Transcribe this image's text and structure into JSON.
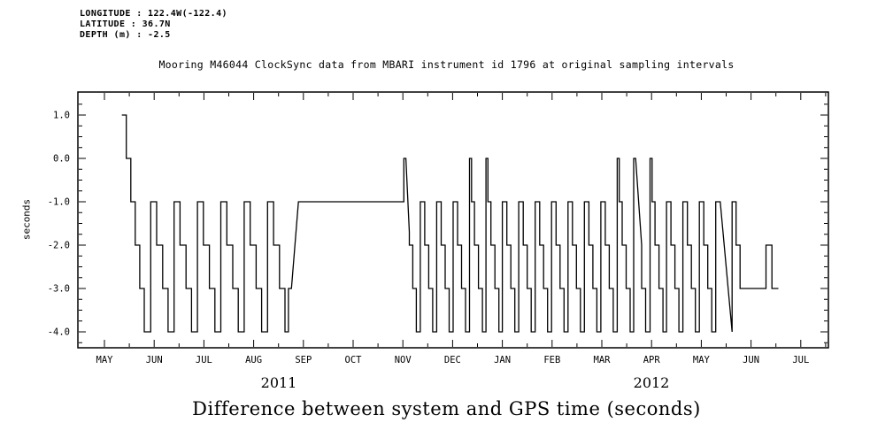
{
  "header": {
    "longitude": "LONGITUDE : 122.4W(-122.4)",
    "latitude": "LATITUDE : 36.7N",
    "depth": "DEPTH (m) : -2.5"
  },
  "title": "Mooring M46044 ClockSync data from MBARI instrument id 1796 at original sampling intervals",
  "caption": "Difference between system and GPS time (seconds)",
  "chart_data": {
    "type": "line",
    "title": "Mooring M46044 ClockSync data from MBARI instrument id 1796 at original sampling intervals",
    "xlabel": "",
    "ylabel": "seconds",
    "month_labels": [
      "MAY",
      "JUN",
      "JUL",
      "AUG",
      "SEP",
      "OCT",
      "NOV",
      "DEC",
      "JAN",
      "FEB",
      "MAR",
      "APR",
      "MAY",
      "JUN",
      "JUL"
    ],
    "year_labels": [
      "2011",
      "2012"
    ],
    "yticks": [
      1.0,
      0.0,
      -1.0,
      -2.0,
      -3.0,
      -4.0
    ],
    "ytick_labels": [
      "1.0",
      "0.0",
      "-1.0",
      "-2.0",
      "-3.0",
      "-4.0"
    ],
    "ylim": [
      -4.4,
      1.55
    ],
    "xlim_months": [
      -0.53,
      14.55
    ],
    "grid": false,
    "legend": "none",
    "description": "Step plot of system-minus-GPS clock offset in seconds. Sawtooth drift between -1 and -4 s from mid-May to late Aug 2011, flat at -1 s from Sep to early Nov 2011, dense sawtooth between 0 and -4 s (with resets to 0 near Dec, Jan, Mar, Apr) from Nov 2011 to Jun 2012, ending near -3 s before Jul 2012.",
    "points": [
      [
        0.35,
        1
      ],
      [
        0.44,
        1
      ],
      [
        0.44,
        0
      ],
      [
        0.53,
        0
      ],
      [
        0.53,
        -1
      ],
      [
        0.62,
        -1
      ],
      [
        0.62,
        -2
      ],
      [
        0.71,
        -2
      ],
      [
        0.71,
        -3
      ],
      [
        0.8,
        -3
      ],
      [
        0.8,
        -4
      ],
      [
        0.93,
        -4
      ],
      [
        0.93,
        -1
      ],
      [
        1.05,
        -1
      ],
      [
        1.05,
        -2
      ],
      [
        1.17,
        -2
      ],
      [
        1.17,
        -3
      ],
      [
        1.28,
        -3
      ],
      [
        1.28,
        -4
      ],
      [
        1.4,
        -4
      ],
      [
        1.4,
        -1
      ],
      [
        1.52,
        -1
      ],
      [
        1.52,
        -2
      ],
      [
        1.64,
        -2
      ],
      [
        1.64,
        -3
      ],
      [
        1.75,
        -3
      ],
      [
        1.75,
        -4
      ],
      [
        1.87,
        -4
      ],
      [
        1.87,
        -1
      ],
      [
        1.99,
        -1
      ],
      [
        1.99,
        -2
      ],
      [
        2.11,
        -2
      ],
      [
        2.11,
        -3
      ],
      [
        2.22,
        -3
      ],
      [
        2.22,
        -4
      ],
      [
        2.34,
        -4
      ],
      [
        2.34,
        -1
      ],
      [
        2.46,
        -1
      ],
      [
        2.46,
        -2
      ],
      [
        2.58,
        -2
      ],
      [
        2.58,
        -3
      ],
      [
        2.69,
        -3
      ],
      [
        2.69,
        -4
      ],
      [
        2.81,
        -4
      ],
      [
        2.81,
        -1
      ],
      [
        2.93,
        -1
      ],
      [
        2.93,
        -2
      ],
      [
        3.05,
        -2
      ],
      [
        3.05,
        -3
      ],
      [
        3.16,
        -3
      ],
      [
        3.16,
        -4
      ],
      [
        3.28,
        -4
      ],
      [
        3.28,
        -1
      ],
      [
        3.4,
        -1
      ],
      [
        3.4,
        -2
      ],
      [
        3.52,
        -2
      ],
      [
        3.52,
        -3
      ],
      [
        3.63,
        -3
      ],
      [
        3.63,
        -4
      ],
      [
        3.7,
        -4
      ],
      [
        3.7,
        -3
      ],
      [
        3.76,
        -3
      ],
      [
        3.9,
        -1
      ],
      [
        6.02,
        -1
      ],
      [
        6.02,
        0
      ],
      [
        6.06,
        0
      ],
      [
        6.13,
        -1.7
      ],
      [
        6.13,
        -2
      ],
      [
        6.2,
        -2
      ],
      [
        6.2,
        -3
      ],
      [
        6.27,
        -3
      ],
      [
        6.27,
        -4
      ],
      [
        6.35,
        -4
      ],
      [
        6.35,
        -1
      ],
      [
        6.44,
        -1
      ],
      [
        6.44,
        -2
      ],
      [
        6.52,
        -2
      ],
      [
        6.52,
        -3
      ],
      [
        6.6,
        -3
      ],
      [
        6.6,
        -4
      ],
      [
        6.68,
        -4
      ],
      [
        6.68,
        -1
      ],
      [
        6.77,
        -1
      ],
      [
        6.77,
        -2
      ],
      [
        6.85,
        -2
      ],
      [
        6.85,
        -3
      ],
      [
        6.93,
        -3
      ],
      [
        6.93,
        -4
      ],
      [
        7.01,
        -4
      ],
      [
        7.01,
        -1
      ],
      [
        7.1,
        -1
      ],
      [
        7.1,
        -2
      ],
      [
        7.18,
        -2
      ],
      [
        7.18,
        -3
      ],
      [
        7.26,
        -3
      ],
      [
        7.26,
        -4
      ],
      [
        7.34,
        -4
      ],
      [
        7.34,
        0
      ],
      [
        7.38,
        0
      ],
      [
        7.38,
        -1
      ],
      [
        7.44,
        -1
      ],
      [
        7.44,
        -2
      ],
      [
        7.52,
        -2
      ],
      [
        7.52,
        -3
      ],
      [
        7.6,
        -3
      ],
      [
        7.6,
        -4
      ],
      [
        7.67,
        -4
      ],
      [
        7.67,
        0
      ],
      [
        7.71,
        0
      ],
      [
        7.71,
        -1
      ],
      [
        7.77,
        -1
      ],
      [
        7.77,
        -2
      ],
      [
        7.85,
        -2
      ],
      [
        7.85,
        -3
      ],
      [
        7.93,
        -3
      ],
      [
        7.93,
        -4
      ],
      [
        8.0,
        -4
      ],
      [
        8.0,
        -1
      ],
      [
        8.09,
        -1
      ],
      [
        8.09,
        -2
      ],
      [
        8.17,
        -2
      ],
      [
        8.17,
        -3
      ],
      [
        8.25,
        -3
      ],
      [
        8.25,
        -4
      ],
      [
        8.33,
        -4
      ],
      [
        8.33,
        -1
      ],
      [
        8.42,
        -1
      ],
      [
        8.42,
        -2
      ],
      [
        8.5,
        -2
      ],
      [
        8.5,
        -3
      ],
      [
        8.58,
        -3
      ],
      [
        8.58,
        -4
      ],
      [
        8.66,
        -4
      ],
      [
        8.66,
        -1
      ],
      [
        8.75,
        -1
      ],
      [
        8.75,
        -2
      ],
      [
        8.83,
        -2
      ],
      [
        8.83,
        -3
      ],
      [
        8.91,
        -3
      ],
      [
        8.91,
        -4
      ],
      [
        8.99,
        -4
      ],
      [
        8.99,
        -1
      ],
      [
        9.08,
        -1
      ],
      [
        9.08,
        -2
      ],
      [
        9.16,
        -2
      ],
      [
        9.16,
        -3
      ],
      [
        9.24,
        -3
      ],
      [
        9.24,
        -4
      ],
      [
        9.32,
        -4
      ],
      [
        9.32,
        -1
      ],
      [
        9.41,
        -1
      ],
      [
        9.41,
        -2
      ],
      [
        9.49,
        -2
      ],
      [
        9.49,
        -3
      ],
      [
        9.57,
        -3
      ],
      [
        9.57,
        -4
      ],
      [
        9.65,
        -4
      ],
      [
        9.65,
        -1
      ],
      [
        9.74,
        -1
      ],
      [
        9.74,
        -2
      ],
      [
        9.82,
        -2
      ],
      [
        9.82,
        -3
      ],
      [
        9.9,
        -3
      ],
      [
        9.9,
        -4
      ],
      [
        9.98,
        -4
      ],
      [
        9.98,
        -1
      ],
      [
        10.07,
        -1
      ],
      [
        10.07,
        -2
      ],
      [
        10.15,
        -2
      ],
      [
        10.15,
        -3
      ],
      [
        10.23,
        -3
      ],
      [
        10.23,
        -4
      ],
      [
        10.31,
        -4
      ],
      [
        10.31,
        0
      ],
      [
        10.35,
        0
      ],
      [
        10.35,
        -1
      ],
      [
        10.41,
        -1
      ],
      [
        10.41,
        -2
      ],
      [
        10.49,
        -2
      ],
      [
        10.49,
        -3
      ],
      [
        10.57,
        -3
      ],
      [
        10.57,
        -4
      ],
      [
        10.64,
        -4
      ],
      [
        10.64,
        0
      ],
      [
        10.68,
        0
      ],
      [
        10.8,
        -2
      ],
      [
        10.8,
        -3
      ],
      [
        10.88,
        -3
      ],
      [
        10.88,
        -4
      ],
      [
        10.97,
        -4
      ],
      [
        10.97,
        0
      ],
      [
        11.01,
        0
      ],
      [
        11.01,
        -1
      ],
      [
        11.07,
        -1
      ],
      [
        11.07,
        -2
      ],
      [
        11.15,
        -2
      ],
      [
        11.15,
        -3
      ],
      [
        11.23,
        -3
      ],
      [
        11.23,
        -4
      ],
      [
        11.3,
        -4
      ],
      [
        11.3,
        -1
      ],
      [
        11.39,
        -1
      ],
      [
        11.39,
        -2
      ],
      [
        11.47,
        -2
      ],
      [
        11.47,
        -3
      ],
      [
        11.55,
        -3
      ],
      [
        11.55,
        -4
      ],
      [
        11.63,
        -4
      ],
      [
        11.63,
        -1
      ],
      [
        11.72,
        -1
      ],
      [
        11.72,
        -2
      ],
      [
        11.8,
        -2
      ],
      [
        11.8,
        -3
      ],
      [
        11.88,
        -3
      ],
      [
        11.88,
        -4
      ],
      [
        11.96,
        -4
      ],
      [
        11.96,
        -1
      ],
      [
        12.05,
        -1
      ],
      [
        12.05,
        -2
      ],
      [
        12.13,
        -2
      ],
      [
        12.13,
        -3
      ],
      [
        12.21,
        -3
      ],
      [
        12.21,
        -4
      ],
      [
        12.29,
        -4
      ],
      [
        12.29,
        -1
      ],
      [
        12.38,
        -1
      ],
      [
        12.62,
        -4
      ],
      [
        12.62,
        -1
      ],
      [
        12.7,
        -1
      ],
      [
        12.7,
        -2
      ],
      [
        12.78,
        -2
      ],
      [
        12.78,
        -3
      ],
      [
        13.3,
        -3
      ],
      [
        13.3,
        -2
      ],
      [
        13.42,
        -2
      ],
      [
        13.42,
        -3
      ],
      [
        13.55,
        -3
      ]
    ]
  }
}
